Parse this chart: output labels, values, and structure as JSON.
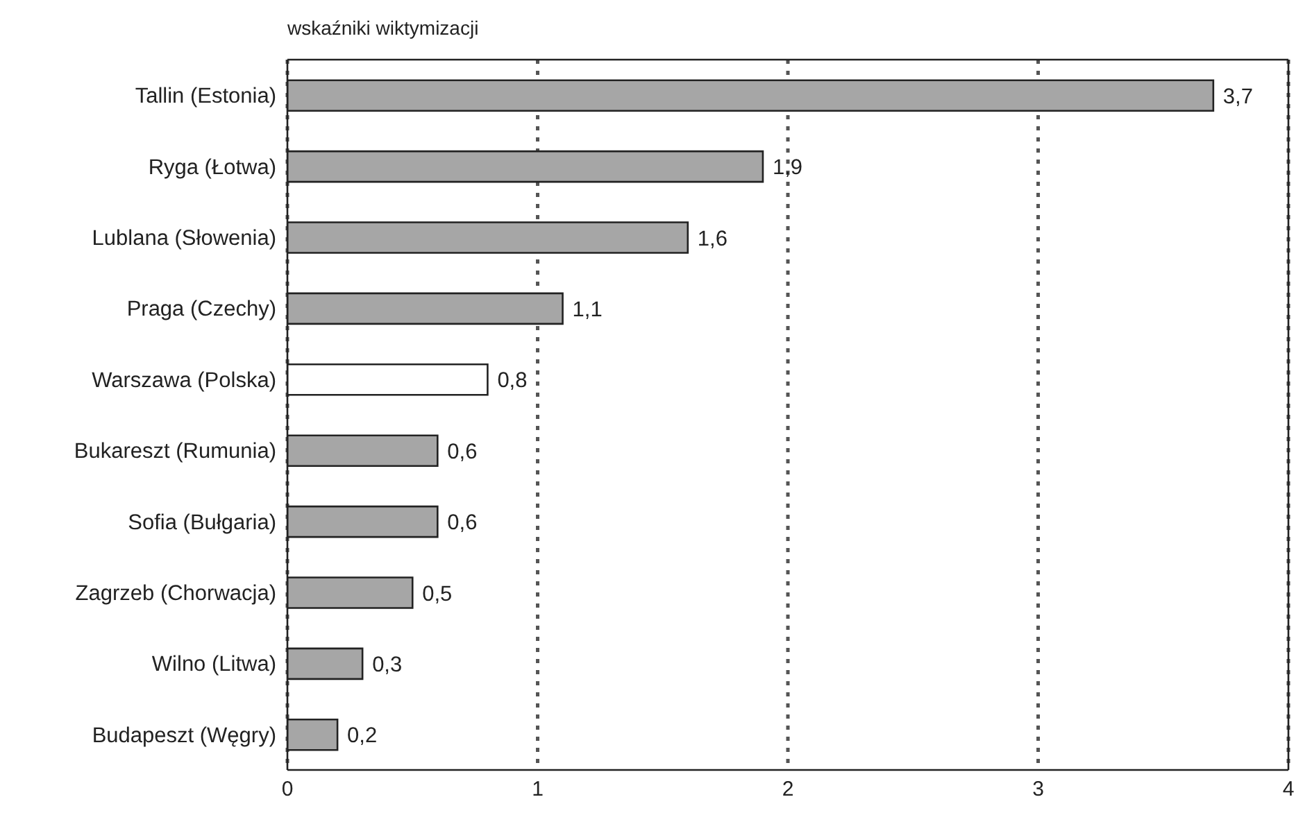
{
  "chart_data": {
    "type": "bar",
    "orientation": "horizontal",
    "title": "wskaźniki wiktymizacji",
    "categories": [
      "Tallin (Estonia)",
      "Ryga (Łotwa)",
      "Lublana (Słowenia)",
      "Praga (Czechy)",
      "Warszawa (Polska)",
      "Bukareszt (Rumunia)",
      "Sofia (Bułgaria)",
      "Zagrzeb (Chorwacja)",
      "Wilno (Litwa)",
      "Budapeszt (Węgry)"
    ],
    "values": [
      3.7,
      1.9,
      1.6,
      1.1,
      0.8,
      0.6,
      0.6,
      0.5,
      0.3,
      0.2
    ],
    "value_labels": [
      "3,7",
      "1,9",
      "1,6",
      "1,1",
      "0,8",
      "0,6",
      "0,6",
      "0,5",
      "0,3",
      "0,2"
    ],
    "colors": [
      "#a6a6a6",
      "#a6a6a6",
      "#a6a6a6",
      "#a6a6a6",
      "#ffffff",
      "#a6a6a6",
      "#a6a6a6",
      "#a6a6a6",
      "#a6a6a6",
      "#a6a6a6"
    ],
    "xlim": [
      0,
      4
    ],
    "xticks": [
      0,
      1,
      2,
      3,
      4
    ],
    "grid": "x"
  }
}
